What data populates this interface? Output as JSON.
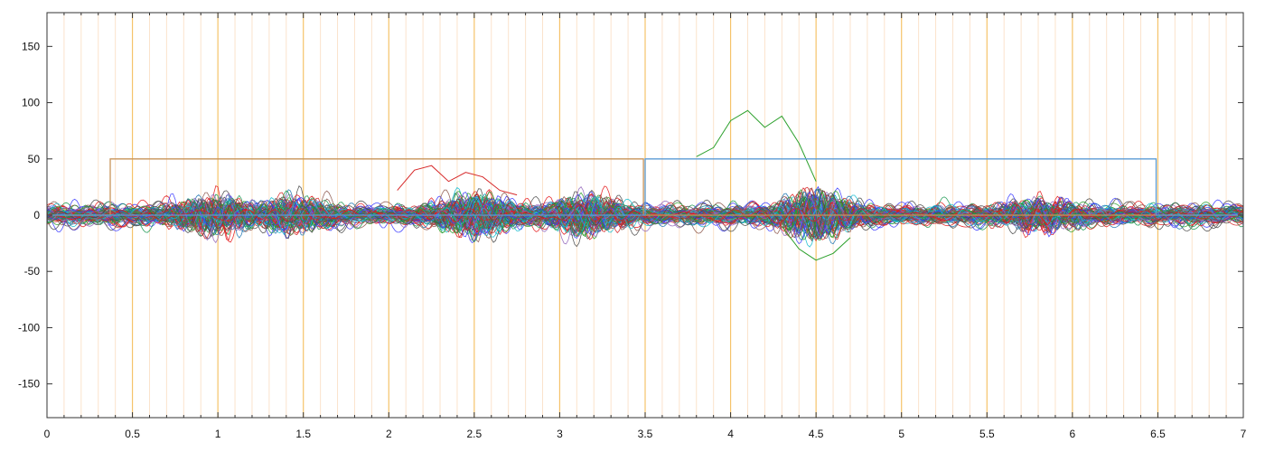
{
  "chart_data": {
    "type": "line",
    "title": "",
    "xlabel": "",
    "ylabel": "",
    "xlim": [
      0,
      7
    ],
    "ylim": [
      -180,
      180
    ],
    "x_ticks": [
      0,
      0.5,
      1,
      1.5,
      2,
      2.5,
      3,
      3.5,
      4,
      4.5,
      5,
      5.5,
      6,
      6.5,
      7
    ],
    "x_tick_labels": [
      "0",
      "0.5",
      "1",
      "1.5",
      "2",
      "2.5",
      "3",
      "3.5",
      "4",
      "4.5",
      "5",
      "5.5",
      "6",
      "6.5",
      "7"
    ],
    "y_ticks": [
      150,
      100,
      50,
      0,
      -50,
      -100,
      -150
    ],
    "y_tick_labels": [
      "150",
      "100",
      "50",
      "0",
      "-50",
      "-100",
      "-150"
    ],
    "grid": {
      "major_vertical_every": 0.5,
      "minor_vertical_every": 0.1,
      "horizontal": false
    },
    "colors": {
      "major_grid": "#f5c36a",
      "minor_grid": "#fbe3cc",
      "axis": "#333333",
      "trace_palette": [
        "#1f77b4",
        "#d62728",
        "#2ca02c",
        "#3a3aff",
        "#9467bd",
        "#17becf",
        "#8c564b",
        "#4a4a4a",
        "#1a9850",
        "#e41a1c"
      ],
      "stimulus_1": "#c8945a",
      "stimulus_2": "#5b9bd5"
    },
    "series": [
      {
        "type": "step",
        "x": [
          0.0,
          0.37,
          0.37,
          3.49,
          3.49,
          7.0
        ],
        "y": [
          0,
          0,
          50,
          50,
          0,
          0
        ]
      },
      {
        "type": "step",
        "x": [
          0.0,
          3.5,
          3.5,
          6.49,
          6.49,
          7.0
        ],
        "y": [
          0,
          0,
          50,
          50,
          0,
          0
        ]
      }
    ],
    "traces": {
      "count": 90,
      "x_range": [
        0,
        7
      ],
      "noise_amplitude": 6,
      "bursts": [
        {
          "center": 0.95,
          "width": 0.25,
          "amplitude": 14
        },
        {
          "center": 1.45,
          "width": 0.25,
          "amplitude": 13
        },
        {
          "center": 2.5,
          "width": 0.25,
          "amplitude": 16
        },
        {
          "center": 3.15,
          "width": 0.25,
          "amplitude": 14
        },
        {
          "center": 4.5,
          "width": 0.25,
          "amplitude": 18
        },
        {
          "center": 5.8,
          "width": 0.25,
          "amplitude": 12
        }
      ],
      "highlights": [
        {
          "color": "#d62728",
          "x": [
            2.05,
            2.15,
            2.25,
            2.35,
            2.45,
            2.55,
            2.65,
            2.75
          ],
          "y": [
            22,
            40,
            44,
            30,
            38,
            34,
            22,
            18
          ]
        },
        {
          "color": "#2ca02c",
          "x": [
            3.8,
            3.9,
            4.0,
            4.1,
            4.2,
            4.3,
            4.4,
            4.5
          ],
          "y": [
            52,
            60,
            84,
            93,
            78,
            88,
            64,
            30
          ]
        },
        {
          "color": "#2ca02c",
          "x": [
            4.3,
            4.4,
            4.5,
            4.6,
            4.7
          ],
          "y": [
            -10,
            -30,
            -40,
            -34,
            -20
          ]
        }
      ]
    }
  }
}
